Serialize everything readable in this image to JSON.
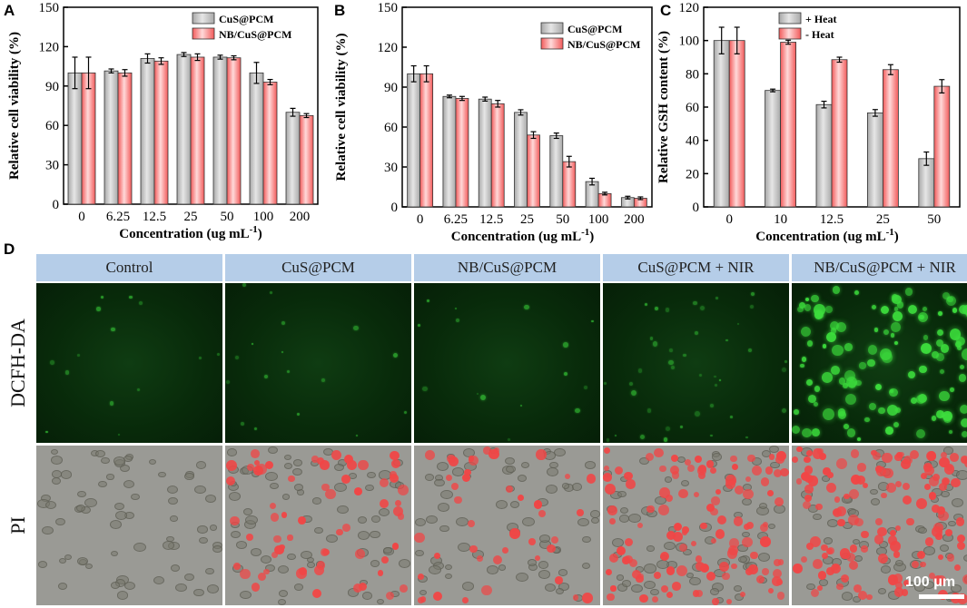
{
  "panels": {
    "A": {
      "letter": "A",
      "chart_data": {
        "type": "bar",
        "categories": [
          "0",
          "6.25",
          "12.5",
          "25",
          "50",
          "100",
          "200"
        ],
        "series": [
          {
            "name": "CuS@PCM",
            "values": [
              100,
              101.5,
              111,
              114,
              112,
              100,
              70
            ],
            "errors": [
              12,
              1.5,
              3.5,
              1.5,
              1.5,
              8,
              3
            ]
          },
          {
            "name": "NB/CuS@PCM",
            "values": [
              100,
              100,
              109,
              112,
              111.5,
              93,
              67.5
            ],
            "errors": [
              12,
              2.5,
              2.5,
              2.5,
              1.5,
              2,
              1.5
            ]
          }
        ],
        "ylabel": "Relative cell viability (%)",
        "xlabel": "Concentration (ug mL",
        "xlabel_sup": "-1",
        "xlabel_end": ")",
        "ylim": [
          0,
          150
        ],
        "yticks": [
          0,
          30,
          60,
          90,
          120,
          150
        ],
        "legend": "top-right",
        "series_colors": [
          "#a8a8a8",
          "#f25a5a"
        ]
      }
    },
    "B": {
      "letter": "B",
      "chart_data": {
        "type": "bar",
        "categories": [
          "0",
          "6.25",
          "12.5",
          "25",
          "50",
          "100",
          "200"
        ],
        "series": [
          {
            "name": "CuS@PCM",
            "values": [
              100,
              83,
              81,
              71,
              53.5,
              19,
              7
            ],
            "errors": [
              6,
              1,
              1.5,
              2,
              2,
              2.5,
              1
            ]
          },
          {
            "name": "NB/CuS@PCM",
            "values": [
              100,
              81.5,
              77.5,
              54,
              34,
              10,
              6.5
            ],
            "errors": [
              6,
              1.5,
              2.5,
              2.5,
              4,
              1,
              1
            ]
          }
        ],
        "ylabel": "Relative cell viability (%)",
        "xlabel": "Concentration (ug mL",
        "xlabel_sup": "-1",
        "xlabel_end": ")",
        "ylim": [
          0,
          150
        ],
        "yticks": [
          0,
          30,
          60,
          90,
          120,
          150
        ],
        "legend": "top-right",
        "series_colors": [
          "#a8a8a8",
          "#f25a5a"
        ]
      }
    },
    "C": {
      "letter": "C",
      "chart_data": {
        "type": "bar",
        "categories": [
          "0",
          "10",
          "12.5",
          "25",
          "50"
        ],
        "series": [
          {
            "name": "+ Heat",
            "values": [
              100,
              70,
              61.5,
              56.5,
              29
            ],
            "errors": [
              8,
              0.8,
              2,
              2,
              4
            ]
          },
          {
            "name": "- Heat",
            "values": [
              100,
              99,
              88.5,
              82.5,
              72.5
            ],
            "errors": [
              8,
              1.2,
              1.5,
              3,
              4
            ]
          }
        ],
        "ylabel": "Relative GSH content (%)",
        "xlabel": "Concentration (ug mL",
        "xlabel_sup": "-1",
        "xlabel_end": ")",
        "ylim": [
          0,
          120
        ],
        "yticks": [
          0,
          20,
          40,
          60,
          80,
          100,
          120
        ],
        "legend": "top-center",
        "series_colors": [
          "#a8a8a8",
          "#f25a5a"
        ]
      }
    },
    "D": {
      "letter": "D",
      "columns": [
        "Control",
        "CuS@PCM",
        "NB/CuS@PCM",
        "CuS@PCM + NIR",
        "NB/CuS@PCM + NIR"
      ],
      "rows": [
        "DCFH-DA",
        "PI"
      ],
      "scalebar": "100 μm",
      "fluor_levels": [
        0.05,
        0.08,
        0.06,
        0.3,
        1.0
      ],
      "pi_levels": [
        0.0,
        0.45,
        0.3,
        0.85,
        1.0
      ]
    }
  }
}
